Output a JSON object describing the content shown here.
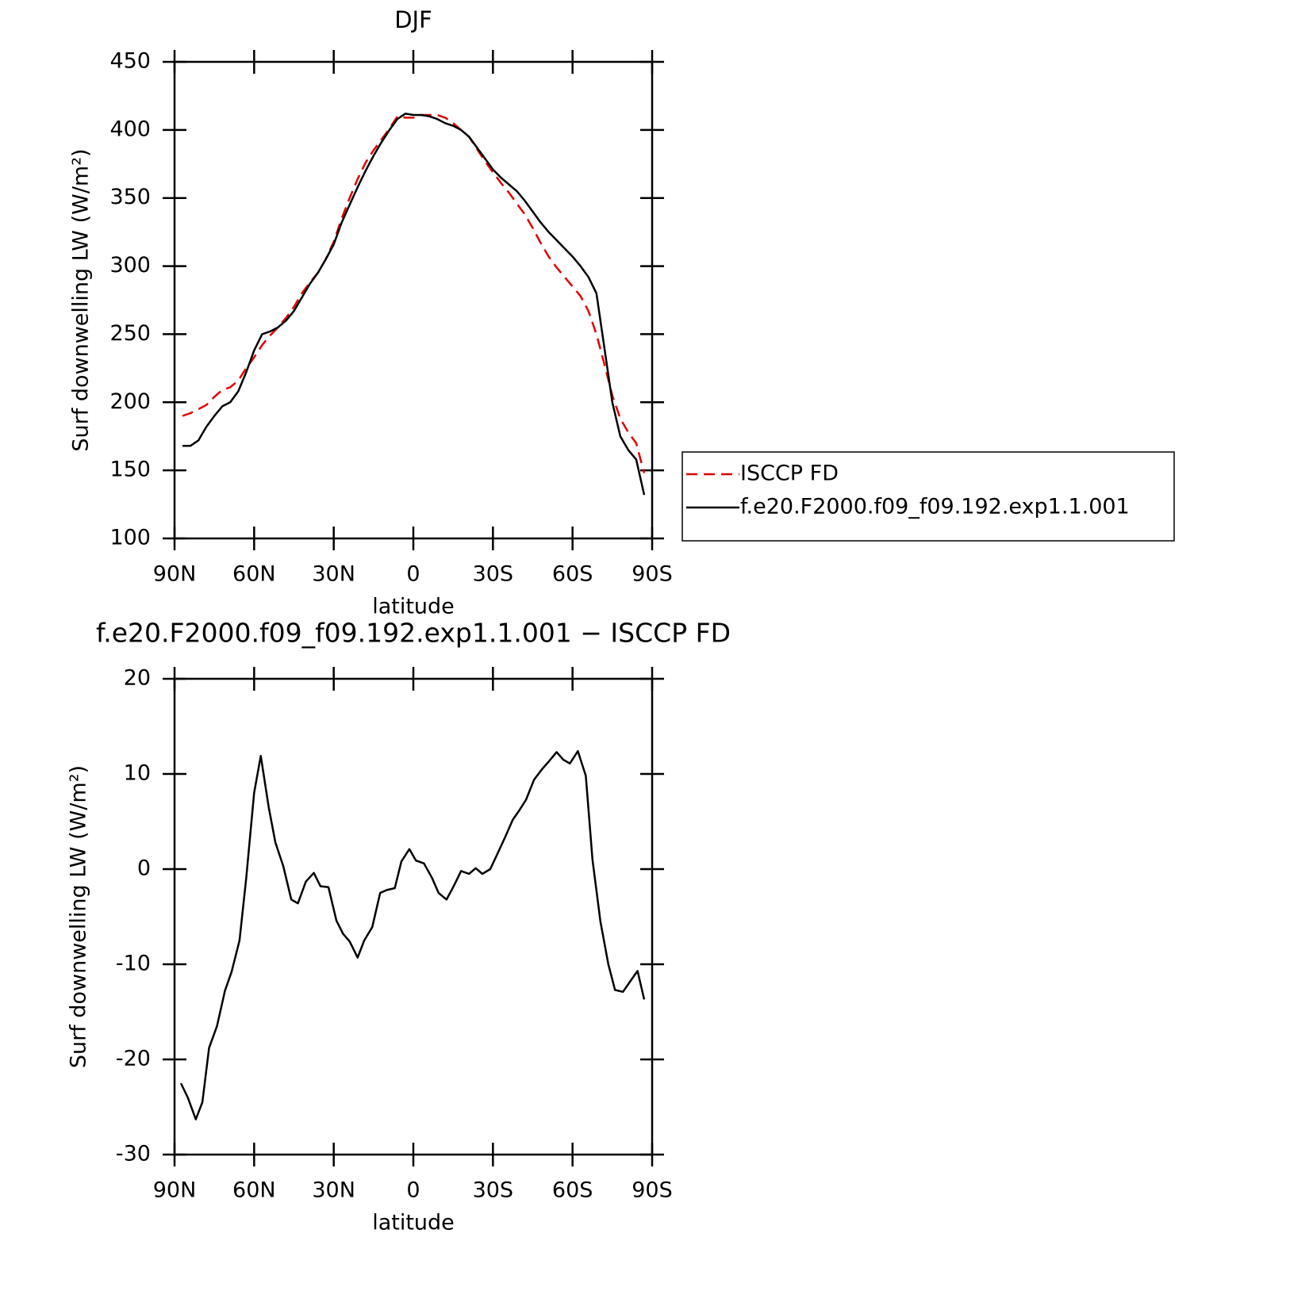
{
  "chart_data": [
    {
      "type": "line",
      "title": "DJF",
      "xlabel": "latitude",
      "ylabel": "Surf downwelling LW (W/m²)",
      "x": [
        87,
        84,
        81,
        78,
        75,
        72,
        69,
        66,
        63,
        60,
        57,
        54,
        51,
        48,
        45,
        42,
        39,
        36,
        33,
        30,
        27,
        24,
        21,
        18,
        15,
        12,
        9,
        6,
        3,
        0,
        -3,
        -6,
        -9,
        -12,
        -15,
        -18,
        -21,
        -24,
        -27,
        -30,
        -33,
        -36,
        -39,
        -42,
        -45,
        -48,
        -51,
        -54,
        -57,
        -60,
        -63,
        -66,
        -69,
        -72,
        -75,
        -78,
        -81,
        -84,
        -87
      ],
      "series": [
        {
          "name": "ISCCP FD",
          "color": "#e00000",
          "dash": true,
          "values": [
            190,
            192,
            195,
            198,
            204,
            209,
            211,
            216,
            225,
            233,
            242,
            249,
            255,
            262,
            270,
            280,
            288,
            295,
            305,
            318,
            335,
            350,
            364,
            376,
            385,
            393,
            401,
            410,
            409,
            409,
            411,
            411,
            411,
            409,
            405,
            400,
            395,
            386,
            377,
            369,
            361,
            354,
            346,
            338,
            328,
            317,
            307,
            299,
            292,
            285,
            278,
            267,
            250,
            228,
            205,
            188,
            178,
            170,
            148
          ]
        },
        {
          "name": "f.e20.F2000.f09_f09.192.exp1.1.001",
          "color": "#000000",
          "dash": false,
          "values": [
            168,
            168,
            172,
            182,
            190,
            197,
            200,
            208,
            222,
            238,
            250,
            252,
            255,
            260,
            267,
            277,
            287,
            295,
            305,
            316,
            332,
            345,
            358,
            370,
            381,
            391,
            400,
            408,
            412,
            411,
            411,
            410,
            408,
            405,
            403,
            400,
            395,
            387,
            379,
            371,
            365,
            360,
            355,
            348,
            340,
            332,
            325,
            319,
            313,
            307,
            300,
            292,
            280,
            240,
            200,
            175,
            165,
            158,
            132
          ]
        }
      ],
      "xlim": [
        90,
        -90
      ],
      "xticks": [
        {
          "value": 90,
          "label": "90N"
        },
        {
          "value": 60,
          "label": "60N"
        },
        {
          "value": 30,
          "label": "30N"
        },
        0,
        {
          "value": -30,
          "label": "30S"
        },
        {
          "value": -60,
          "label": "60S"
        },
        {
          "value": -90,
          "label": "90S"
        }
      ],
      "ylim": [
        100,
        450
      ],
      "yticks": [
        100,
        150,
        200,
        250,
        300,
        350,
        400,
        450
      ],
      "legend": "outside-right"
    },
    {
      "type": "line",
      "title": "f.e20.F2000.f09_f09.192.exp1.1.001 − ISCCP FD",
      "xlabel": "latitude",
      "ylabel": "Surf downwelling LW (W/m²)",
      "x": [
        87.6,
        85,
        82,
        79.5,
        77,
        74,
        71,
        68.5,
        65.5,
        63,
        60,
        57.5,
        54.5,
        52,
        49,
        46,
        43.5,
        40.5,
        37.5,
        35,
        32,
        29,
        26.5,
        24,
        21,
        18.5,
        15.5,
        12.5,
        10,
        7,
        4.5,
        1.5,
        -1,
        -4,
        -7,
        -9.5,
        -12.5,
        -15,
        -18,
        -21,
        -23.5,
        -26,
        -29,
        -31.5,
        -34.5,
        -37.5,
        -40,
        -42.5,
        -45.5,
        -48.5,
        -51,
        -54,
        -56.5,
        -59,
        -62,
        -65,
        -67.5,
        -70.5,
        -73.5,
        -76,
        -79,
        -82,
        -84.5,
        -87
      ],
      "series": [
        {
          "color": "#000000",
          "dash": false,
          "values": [
            -22.5,
            -24,
            -26.3,
            -24.5,
            -18.8,
            -16.5,
            -12.8,
            -10.8,
            -7.5,
            -1,
            8,
            11.9,
            6.5,
            2.8,
            0.3,
            -3.2,
            -3.6,
            -1.3,
            -0.4,
            -1.8,
            -1.9,
            -5.4,
            -6.8,
            -7.6,
            -9.3,
            -7.5,
            -6.1,
            -2.5,
            -2.2,
            -2,
            0.8,
            2.1,
            0.9,
            0.6,
            -0.9,
            -2.5,
            -3.2,
            -1.9,
            -0.2,
            -0.5,
            0.1,
            -0.5,
            0,
            1.5,
            3.3,
            5.2,
            6.2,
            7.3,
            9.4,
            10.5,
            11.3,
            12.3,
            11.5,
            11.1,
            12.4,
            9.8,
            1,
            -5.5,
            -10,
            -12.7,
            -12.9,
            -11.7,
            -10.7,
            -13.7
          ]
        }
      ],
      "xlim": [
        90,
        -90
      ],
      "xticks": [
        {
          "value": 90,
          "label": "90N"
        },
        {
          "value": 60,
          "label": "60N"
        },
        {
          "value": 30,
          "label": "30N"
        },
        0,
        {
          "value": -30,
          "label": "30S"
        },
        {
          "value": -60,
          "label": "60S"
        },
        {
          "value": -90,
          "label": "90S"
        }
      ],
      "ylim": [
        -30,
        20
      ],
      "yticks": [
        -30,
        -20,
        -10,
        0,
        10,
        20
      ]
    }
  ]
}
